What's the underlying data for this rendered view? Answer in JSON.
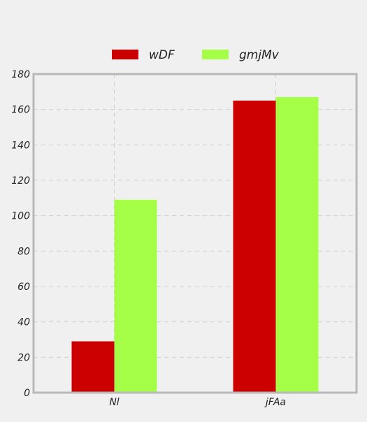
{
  "chart_data": {
    "type": "bar",
    "title": "",
    "xlabel": "",
    "ylabel": "",
    "categories": [
      "Nl",
      "jFAa"
    ],
    "series": [
      {
        "name": "wDF",
        "values": [
          29,
          165
        ],
        "color": "#cc0000"
      },
      {
        "name": "gmjMv",
        "values": [
          109,
          167
        ],
        "color": "#a6ff47"
      }
    ],
    "ylim": [
      0,
      180
    ],
    "yticks": [
      0,
      20,
      40,
      60,
      80,
      100,
      120,
      140,
      160,
      180
    ],
    "grid": true,
    "legend": "top-center"
  },
  "colors": {
    "background": "#f0f0f0",
    "plot_border": "#b8b8b8",
    "grid": "#cfcfcf"
  }
}
